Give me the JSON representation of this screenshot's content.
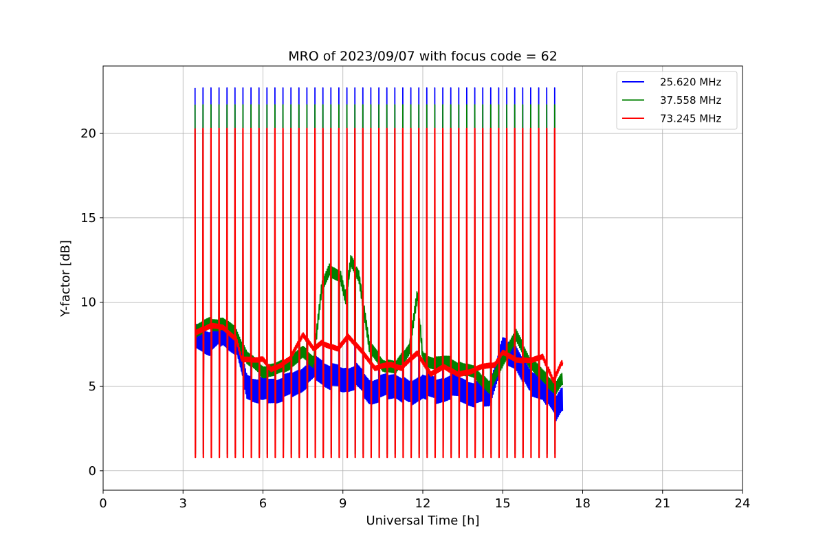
{
  "chart_data": {
    "type": "line",
    "title": "MRO of 2023/09/07 with focus code = 62",
    "xlabel": "Universal Time [h]",
    "ylabel": "Y-factor [dB]",
    "xlim": [
      0,
      24
    ],
    "ylim": [
      -1.15,
      24
    ],
    "xticks": [
      0,
      3,
      6,
      9,
      12,
      15,
      18,
      21,
      24
    ],
    "yticks": [
      0,
      5,
      10,
      15,
      20
    ],
    "grid": true,
    "legend_position": "top-right",
    "cycle": {
      "start": 3.45,
      "period": 0.3,
      "count": 46,
      "top": [
        22.7,
        21.7,
        20.3
      ],
      "bottom": [
        1.0,
        1.0,
        0.8
      ]
    },
    "series": [
      {
        "name": "25.620 MHz",
        "color": "#0000ff",
        "baseline": [
          [
            3.5,
            8.0
          ],
          [
            4.0,
            7.6
          ],
          [
            4.5,
            8.2
          ],
          [
            5.0,
            7.6
          ],
          [
            5.4,
            5.0
          ],
          [
            6.0,
            4.7
          ],
          [
            6.5,
            4.8
          ],
          [
            7.0,
            5.0
          ],
          [
            7.5,
            5.5
          ],
          [
            8.0,
            6.1
          ],
          [
            8.5,
            5.6
          ],
          [
            9.0,
            5.4
          ],
          [
            9.5,
            5.6
          ],
          [
            10.0,
            4.7
          ],
          [
            10.5,
            4.9
          ],
          [
            11.0,
            5.1
          ],
          [
            11.5,
            4.5
          ],
          [
            12.0,
            5.1
          ],
          [
            12.5,
            4.7
          ],
          [
            13.0,
            5.0
          ],
          [
            13.5,
            4.8
          ],
          [
            14.0,
            4.5
          ],
          [
            14.5,
            4.6
          ],
          [
            15.0,
            7.1
          ],
          [
            15.5,
            6.8
          ],
          [
            16.0,
            5.2
          ],
          [
            16.5,
            5.0
          ],
          [
            17.0,
            3.7
          ],
          [
            17.2,
            4.3
          ]
        ],
        "spread": 0.8
      },
      {
        "name": "37.558 MHz",
        "color": "#008000",
        "baseline": [
          [
            3.5,
            8.3
          ],
          [
            4.0,
            8.7
          ],
          [
            4.5,
            8.7
          ],
          [
            5.0,
            8.1
          ],
          [
            5.4,
            6.7
          ],
          [
            6.0,
            5.9
          ],
          [
            6.5,
            6.0
          ],
          [
            7.0,
            6.4
          ],
          [
            7.5,
            7.0
          ],
          [
            7.9,
            6.5
          ],
          [
            8.2,
            10.8
          ],
          [
            8.5,
            11.9
          ],
          [
            8.9,
            11.6
          ],
          [
            9.1,
            10.2
          ],
          [
            9.3,
            12.4
          ],
          [
            9.6,
            11.6
          ],
          [
            10.0,
            7.3
          ],
          [
            10.5,
            6.3
          ],
          [
            11.0,
            6.1
          ],
          [
            11.5,
            7.3
          ],
          [
            11.8,
            10.5
          ],
          [
            12.0,
            6.6
          ],
          [
            12.5,
            6.4
          ],
          [
            13.0,
            6.4
          ],
          [
            13.5,
            6.0
          ],
          [
            14.0,
            5.8
          ],
          [
            14.5,
            4.9
          ],
          [
            15.0,
            6.6
          ],
          [
            15.5,
            8.0
          ],
          [
            16.0,
            6.5
          ],
          [
            16.5,
            5.6
          ],
          [
            17.0,
            4.9
          ],
          [
            17.2,
            5.4
          ]
        ],
        "spread": 0.4
      },
      {
        "name": "73.245 MHz",
        "color": "#ff0000",
        "baseline": [
          [
            3.5,
            8.2
          ],
          [
            4.0,
            8.6
          ],
          [
            4.5,
            8.5
          ],
          [
            5.0,
            7.8
          ],
          [
            5.2,
            6.6
          ],
          [
            6.0,
            6.6
          ],
          [
            6.3,
            6.0
          ],
          [
            6.7,
            6.3
          ],
          [
            7.0,
            6.6
          ],
          [
            7.5,
            8.1
          ],
          [
            7.9,
            7.2
          ],
          [
            8.2,
            7.6
          ],
          [
            8.8,
            7.2
          ],
          [
            9.2,
            8.0
          ],
          [
            9.8,
            6.9
          ],
          [
            10.2,
            6.1
          ],
          [
            10.8,
            6.3
          ],
          [
            11.2,
            6.1
          ],
          [
            11.8,
            7.0
          ],
          [
            12.3,
            5.7
          ],
          [
            12.8,
            6.2
          ],
          [
            13.3,
            5.7
          ],
          [
            13.8,
            5.9
          ],
          [
            14.3,
            6.2
          ],
          [
            14.7,
            6.3
          ],
          [
            15.0,
            7.0
          ],
          [
            15.5,
            6.6
          ],
          [
            16.0,
            6.5
          ],
          [
            16.5,
            6.8
          ],
          [
            16.9,
            5.3
          ],
          [
            17.2,
            6.4
          ]
        ],
        "spread": 0.15
      }
    ]
  }
}
